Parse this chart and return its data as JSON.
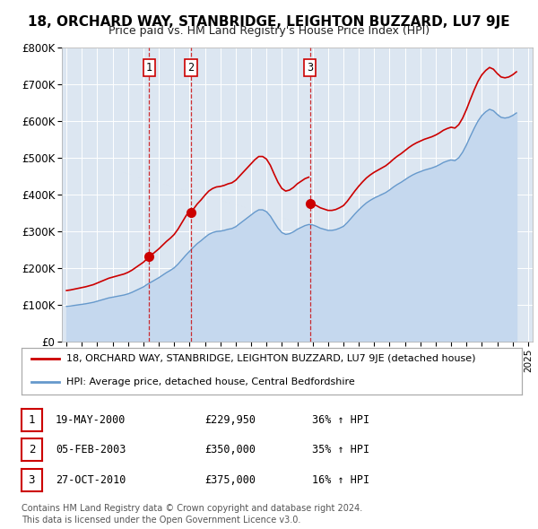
{
  "title": "18, ORCHARD WAY, STANBRIDGE, LEIGHTON BUZZARD, LU7 9JE",
  "subtitle": "Price paid vs. HM Land Registry's House Price Index (HPI)",
  "background_color": "#ffffff",
  "plot_bg_color": "#dce6f1",
  "grid_color": "#ffffff",
  "ylim": [
    0,
    800000
  ],
  "yticks": [
    0,
    100000,
    200000,
    300000,
    400000,
    500000,
    600000,
    700000,
    800000
  ],
  "ytick_labels": [
    "£0",
    "£100K",
    "£200K",
    "£300K",
    "£400K",
    "£500K",
    "£600K",
    "£700K",
    "£800K"
  ],
  "sale_dates": [
    2000.38,
    2003.09,
    2010.82
  ],
  "sale_prices": [
    229950,
    350000,
    375000
  ],
  "sale_labels": [
    "1",
    "2",
    "3"
  ],
  "hpi_years": [
    1995.0,
    1995.25,
    1995.5,
    1995.75,
    1996.0,
    1996.25,
    1996.5,
    1996.75,
    1997.0,
    1997.25,
    1997.5,
    1997.75,
    1998.0,
    1998.25,
    1998.5,
    1998.75,
    1999.0,
    1999.25,
    1999.5,
    1999.75,
    2000.0,
    2000.25,
    2000.5,
    2000.75,
    2001.0,
    2001.25,
    2001.5,
    2001.75,
    2002.0,
    2002.25,
    2002.5,
    2002.75,
    2003.0,
    2003.25,
    2003.5,
    2003.75,
    2004.0,
    2004.25,
    2004.5,
    2004.75,
    2005.0,
    2005.25,
    2005.5,
    2005.75,
    2006.0,
    2006.25,
    2006.5,
    2006.75,
    2007.0,
    2007.25,
    2007.5,
    2007.75,
    2008.0,
    2008.25,
    2008.5,
    2008.75,
    2009.0,
    2009.25,
    2009.5,
    2009.75,
    2010.0,
    2010.25,
    2010.5,
    2010.75,
    2011.0,
    2011.25,
    2011.5,
    2011.75,
    2012.0,
    2012.25,
    2012.5,
    2012.75,
    2013.0,
    2013.25,
    2013.5,
    2013.75,
    2014.0,
    2014.25,
    2014.5,
    2014.75,
    2015.0,
    2015.25,
    2015.5,
    2015.75,
    2016.0,
    2016.25,
    2016.5,
    2016.75,
    2017.0,
    2017.25,
    2017.5,
    2017.75,
    2018.0,
    2018.25,
    2018.5,
    2018.75,
    2019.0,
    2019.25,
    2019.5,
    2019.75,
    2020.0,
    2020.25,
    2020.5,
    2020.75,
    2021.0,
    2021.25,
    2021.5,
    2021.75,
    2022.0,
    2022.25,
    2022.5,
    2022.75,
    2023.0,
    2023.25,
    2023.5,
    2023.75,
    2024.0,
    2024.25
  ],
  "hpi_values": [
    95000,
    96000,
    97500,
    99000,
    100500,
    102000,
    104000,
    106000,
    109000,
    112000,
    115000,
    118000,
    120000,
    122000,
    124000,
    126000,
    129000,
    133000,
    138000,
    143000,
    148000,
    155000,
    161000,
    167000,
    173000,
    180000,
    187000,
    193000,
    200000,
    210000,
    222000,
    234000,
    245000,
    256000,
    266000,
    274000,
    283000,
    291000,
    296000,
    299000,
    300000,
    302000,
    305000,
    307000,
    312000,
    320000,
    328000,
    336000,
    344000,
    352000,
    358000,
    358000,
    353000,
    341000,
    324000,
    308000,
    296000,
    291000,
    293000,
    298000,
    305000,
    310000,
    315000,
    318000,
    317000,
    313000,
    308000,
    305000,
    302000,
    302000,
    304000,
    308000,
    313000,
    323000,
    335000,
    347000,
    358000,
    368000,
    377000,
    384000,
    390000,
    395000,
    400000,
    405000,
    412000,
    420000,
    427000,
    433000,
    440000,
    447000,
    453000,
    458000,
    462000,
    466000,
    469000,
    472000,
    476000,
    481000,
    487000,
    491000,
    494000,
    492000,
    500000,
    515000,
    535000,
    558000,
    580000,
    600000,
    615000,
    625000,
    632000,
    628000,
    618000,
    610000,
    608000,
    610000,
    615000,
    622000
  ],
  "property_line_color": "#cc0000",
  "hpi_line_color": "#6699cc",
  "hpi_fill_color": "#c5d8ee",
  "legend_property": "18, ORCHARD WAY, STANBRIDGE, LEIGHTON BUZZARD, LU7 9JE (detached house)",
  "legend_hpi": "HPI: Average price, detached house, Central Bedfordshire",
  "table_rows": [
    [
      "1",
      "19-MAY-2000",
      "£229,950",
      "36% ↑ HPI"
    ],
    [
      "2",
      "05-FEB-2003",
      "£350,000",
      "35% ↑ HPI"
    ],
    [
      "3",
      "27-OCT-2010",
      "£375,000",
      "16% ↑ HPI"
    ]
  ],
  "footer_text": "Contains HM Land Registry data © Crown copyright and database right 2024.\nThis data is licensed under the Open Government Licence v3.0.",
  "xticks": [
    1995,
    1996,
    1997,
    1998,
    1999,
    2000,
    2001,
    2002,
    2003,
    2004,
    2005,
    2006,
    2007,
    2008,
    2009,
    2010,
    2011,
    2012,
    2013,
    2014,
    2015,
    2016,
    2017,
    2018,
    2019,
    2020,
    2021,
    2022,
    2023,
    2024,
    2025
  ],
  "xlim": [
    1994.7,
    2025.3
  ]
}
